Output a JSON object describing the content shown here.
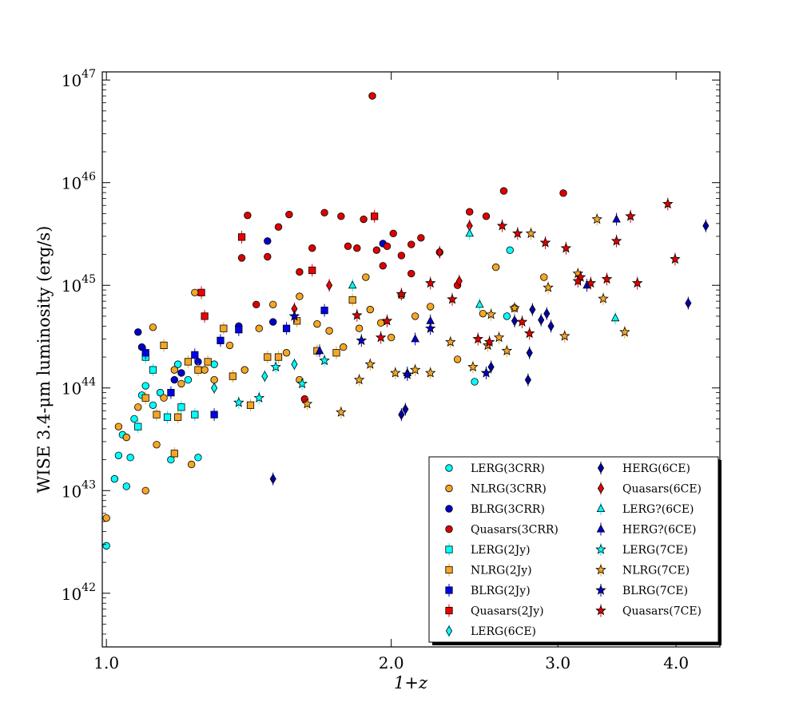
{
  "chart_data": {
    "type": "scatter",
    "title": "",
    "xlabel": "1+z",
    "ylabel": "WISE 3.4-μm luminosity (erg/s)",
    "x_scale": "log",
    "y_scale": "log",
    "xlim": [
      0.99,
      4.45
    ],
    "ylim": [
      3e+41,
      1.2e+47
    ],
    "x_ticks": [
      1.0,
      2.0,
      3.0,
      4.0
    ],
    "x_tick_labels": [
      "1.0",
      "2.0",
      "3.0",
      "4.0"
    ],
    "y_ticks": [
      1e+42,
      1e+43,
      1e+44,
      1e+45,
      1e+46,
      1e+47
    ],
    "y_tick_labels": [
      {
        "base": "10",
        "exp": "42"
      },
      {
        "base": "10",
        "exp": "43"
      },
      {
        "base": "10",
        "exp": "44"
      },
      {
        "base": "10",
        "exp": "45"
      },
      {
        "base": "10",
        "exp": "46"
      },
      {
        "base": "10",
        "exp": "47"
      }
    ],
    "grid": false,
    "legend_position": "lower-right",
    "series": [
      {
        "name": "LERG(3CRR)",
        "marker": "circle",
        "color": "#00ffff",
        "points": [
          [
            1.0,
            2.9e+42
          ],
          [
            1.02,
            1.3e+43
          ],
          [
            1.03,
            2.2e+43
          ],
          [
            1.04,
            3.5e+43
          ],
          [
            1.05,
            1.1e+43
          ],
          [
            1.06,
            2.1e+43
          ],
          [
            1.07,
            5e+43
          ],
          [
            1.09,
            8.5e+43
          ],
          [
            1.1,
            1.05e+44
          ],
          [
            1.12,
            6.8e+43
          ],
          [
            1.14,
            9e+43
          ],
          [
            1.17,
            2e+43
          ],
          [
            1.19,
            1.7e+44
          ],
          [
            1.22,
            1.2e+44
          ],
          [
            1.25,
            2.1e+43
          ],
          [
            1.3,
            1.7e+44
          ],
          [
            2.45,
            1.15e+44
          ],
          [
            2.65,
            5e+44
          ],
          [
            2.67,
            2.2e+45
          ]
        ]
      },
      {
        "name": "NLRG(3CRR)",
        "marker": "circle",
        "color": "#f5a623",
        "points": [
          [
            1.0,
            5.4e+42
          ],
          [
            1.03,
            4.2e+43
          ],
          [
            1.05,
            3.3e+43
          ],
          [
            1.08,
            6.5e+43
          ],
          [
            1.1,
            1e+43
          ],
          [
            1.12,
            3.9e+44
          ],
          [
            1.13,
            2.8e+43
          ],
          [
            1.15,
            8e+43
          ],
          [
            1.18,
            1.5e+44
          ],
          [
            1.2,
            1.1e+44
          ],
          [
            1.23,
            1.8e+43
          ],
          [
            1.24,
            8.5e+44
          ],
          [
            1.27,
            1.5e+44
          ],
          [
            1.3,
            1.2e+44
          ],
          [
            1.35,
            2.6e+44
          ],
          [
            1.4,
            1.5e+44
          ],
          [
            1.45,
            3.8e+44
          ],
          [
            1.5,
            6.5e+44
          ],
          [
            1.55,
            2.2e+44
          ],
          [
            1.6,
            1.2e+44
          ],
          [
            1.67,
            4.2e+44
          ],
          [
            1.72,
            3.6e+44
          ],
          [
            1.78,
            2.5e+44
          ],
          [
            1.85,
            3.8e+44
          ],
          [
            1.9,
            5.8e+44
          ],
          [
            1.95,
            4.3e+44
          ],
          [
            2.0,
            3.1e+44
          ],
          [
            2.05,
            8e+44
          ],
          [
            2.12,
            5e+44
          ],
          [
            2.2,
            6.2e+44
          ],
          [
            2.35,
            1.9e+44
          ],
          [
            2.5,
            5.3e+44
          ],
          [
            2.58,
            1.5e+45
          ],
          [
            2.7,
            6e+44
          ],
          [
            2.9,
            1.2e+45
          ],
          [
            1.88,
            1.2e+45
          ],
          [
            1.6,
            7.8e+44
          ]
        ]
      },
      {
        "name": "BLRG(3CRR)",
        "marker": "circle",
        "color": "#0000cc",
        "points": [
          [
            1.08,
            3.5e+44
          ],
          [
            1.09,
            2.5e+44
          ],
          [
            1.18,
            1.2e+44
          ],
          [
            1.2,
            1.4e+44
          ],
          [
            1.25,
            1.8e+44
          ],
          [
            1.38,
            4e+44
          ],
          [
            1.5,
            4.4e+44
          ],
          [
            1.48,
            2.7e+45
          ],
          [
            1.96,
            2.55e+45
          ]
        ]
      },
      {
        "name": "Quasars(3CRR)",
        "marker": "circle",
        "color": "#dd0000",
        "points": [
          [
            1.39,
            1.85e+45
          ],
          [
            1.41,
            4.8e+45
          ],
          [
            1.44,
            6.5e+44
          ],
          [
            1.48,
            1.9e+45
          ],
          [
            1.52,
            3.7e+45
          ],
          [
            1.56,
            4.9e+45
          ],
          [
            1.6,
            1.35e+45
          ],
          [
            1.62,
            7.8e+43
          ],
          [
            1.65,
            2.3e+45
          ],
          [
            1.7,
            5.1e+45
          ],
          [
            1.77,
            4.7e+45
          ],
          [
            1.8,
            2.4e+45
          ],
          [
            1.84,
            2.3e+45
          ],
          [
            1.87,
            4.4e+45
          ],
          [
            1.91,
            7e+46
          ],
          [
            1.93,
            2.2e+45
          ],
          [
            1.98,
            2.4e+45
          ],
          [
            2.01,
            3.2e+45
          ],
          [
            2.05,
            1.95e+45
          ],
          [
            2.1,
            2.5e+45
          ],
          [
            2.15,
            2.9e+45
          ],
          [
            2.25,
            2.1e+45
          ],
          [
            2.35,
            1e+45
          ],
          [
            2.42,
            5.2e+45
          ],
          [
            2.52,
            4.7e+45
          ],
          [
            2.63,
            8.3e+45
          ],
          [
            3.04,
            7.9e+45
          ],
          [
            1.96,
            1.55e+45
          ],
          [
            2.1,
            1.3e+45
          ]
        ]
      },
      {
        "name": "LERG(2Jy)",
        "marker": "square",
        "color": "#00ffff",
        "points": [
          [
            1.08,
            4.2e+43
          ],
          [
            1.1,
            2e+44
          ],
          [
            1.12,
            1.5e+44
          ],
          [
            1.16,
            5.2e+43
          ],
          [
            1.2,
            6.5e+43
          ],
          [
            1.24,
            5.5e+43
          ]
        ]
      },
      {
        "name": "NLRG(2Jy)",
        "marker": "square",
        "color": "#f5a623",
        "points": [
          [
            1.1,
            8e+43
          ],
          [
            1.13,
            5.5e+43
          ],
          [
            1.15,
            2.6e+44
          ],
          [
            1.18,
            2.3e+43
          ],
          [
            1.19,
            5.2e+43
          ],
          [
            1.22,
            1.8e+44
          ],
          [
            1.25,
            1.5e+44
          ],
          [
            1.28,
            1.8e+44
          ],
          [
            1.33,
            3.8e+44
          ],
          [
            1.36,
            1.3e+44
          ],
          [
            1.42,
            6.8e+43
          ],
          [
            1.48,
            2e+44
          ],
          [
            1.52,
            2e+44
          ],
          [
            1.59,
            4.5e+44
          ],
          [
            1.67,
            2.3e+44
          ],
          [
            1.75,
            2.2e+44
          ],
          [
            1.82,
            7.2e+44
          ]
        ]
      },
      {
        "name": "BLRG(2Jy)",
        "marker": "square",
        "color": "#0000ee",
        "points": [
          [
            1.1,
            2.2e+44
          ],
          [
            1.17,
            9e+43
          ],
          [
            1.24,
            2.1e+44
          ],
          [
            1.3,
            5.5e+43
          ],
          [
            1.32,
            2.9e+44
          ],
          [
            1.38,
            3.7e+44
          ],
          [
            1.55,
            3.8e+44
          ],
          [
            1.7,
            5.7e+44
          ]
        ]
      },
      {
        "name": "Quasars(2Jy)",
        "marker": "square",
        "color": "#ee0000",
        "points": [
          [
            1.26,
            8.5e+44
          ],
          [
            1.27,
            5e+44
          ],
          [
            1.39,
            2.95e+45
          ],
          [
            1.65,
            1.4e+45
          ],
          [
            1.92,
            4.7e+45
          ]
        ]
      },
      {
        "name": "LERG(6CE)",
        "marker": "diamond",
        "color": "#00ffff",
        "points": [
          [
            1.3,
            1e+44
          ],
          [
            1.47,
            1.3e+44
          ],
          [
            1.58,
            1.7e+44
          ]
        ]
      },
      {
        "name": "HERG(6CE)",
        "marker": "diamond",
        "color": "#0000aa",
        "points": [
          [
            1.5,
            1.3e+43
          ],
          [
            2.05,
            5.5e+43
          ],
          [
            2.07,
            6.2e+43
          ],
          [
            2.55,
            1.6e+44
          ],
          [
            2.7,
            4.5e+44
          ],
          [
            2.79,
            1.2e+44
          ],
          [
            2.8,
            2.2e+44
          ],
          [
            2.82,
            5.8e+44
          ],
          [
            2.88,
            4.6e+44
          ],
          [
            2.92,
            5.3e+44
          ],
          [
            2.95,
            4e+44
          ],
          [
            4.12,
            6.7e+44
          ],
          [
            4.3,
            3.8e+45
          ]
        ]
      },
      {
        "name": "Quasars(6CE)",
        "marker": "diamond",
        "color": "#ee0000",
        "points": [
          [
            1.58,
            5.9e+44
          ],
          [
            1.72,
            1e+45
          ],
          [
            2.42,
            3.8e+45
          ],
          [
            2.36,
            1.1e+45
          ],
          [
            2.25,
            2.1e+45
          ]
        ]
      },
      {
        "name": "LERG?(6CE)",
        "marker": "triangle",
        "color": "#00ffff",
        "points": [
          [
            1.82,
            1e+45
          ],
          [
            2.42,
            3.2e+45
          ],
          [
            2.48,
            6.5e+44
          ],
          [
            3.45,
            4.8e+44
          ]
        ]
      },
      {
        "name": "HERG?(6CE)",
        "marker": "triangle",
        "color": "#0000cc",
        "points": [
          [
            1.68,
            2.3e+44
          ],
          [
            2.12,
            3e+44
          ],
          [
            2.2,
            4.5e+44
          ],
          [
            2.08,
            1.4e+44
          ],
          [
            3.22,
            1e+45
          ],
          [
            3.46,
            4.4e+45
          ]
        ]
      },
      {
        "name": "LERG(7CE)",
        "marker": "star",
        "color": "#00ffff",
        "points": [
          [
            1.38,
            7.2e+43
          ],
          [
            1.45,
            8e+43
          ],
          [
            1.51,
            1.6e+44
          ],
          [
            1.61,
            1.1e+44
          ],
          [
            1.7,
            1.85e+44
          ]
        ]
      },
      {
        "name": "NLRG(7CE)",
        "marker": "star",
        "color": "#f5a623",
        "points": [
          [
            1.63,
            7e+43
          ],
          [
            1.77,
            5.8e+43
          ],
          [
            1.85,
            1.2e+44
          ],
          [
            1.9,
            1.7e+44
          ],
          [
            2.02,
            1.4e+44
          ],
          [
            2.12,
            1.5e+44
          ],
          [
            2.2,
            1.4e+44
          ],
          [
            2.31,
            2.8e+44
          ],
          [
            2.44,
            1.6e+44
          ],
          [
            2.53,
            2.6e+44
          ],
          [
            2.6,
            3.1e+44
          ],
          [
            2.65,
            2.3e+44
          ],
          [
            2.7,
            6e+44
          ],
          [
            2.81,
            3.2e+45
          ],
          [
            3.05,
            3.2e+44
          ],
          [
            3.15,
            1.3e+45
          ],
          [
            3.3,
            4.4e+45
          ],
          [
            3.35,
            7.4e+44
          ],
          [
            3.53,
            3.5e+44
          ],
          [
            2.93,
            9.5e+44
          ],
          [
            2.55,
            5.2e+44
          ]
        ]
      },
      {
        "name": "BLRG(7CE)",
        "marker": "star",
        "color": "#0000cc",
        "points": [
          [
            1.58,
            5e+44
          ],
          [
            1.86,
            2.9e+44
          ],
          [
            2.08,
            1.35e+44
          ],
          [
            2.2,
            3.8e+44
          ],
          [
            2.52,
            1.4e+44
          ]
        ]
      },
      {
        "name": "Quasars(7CE)",
        "marker": "star",
        "color": "#dd0000",
        "points": [
          [
            1.95,
            3.1e+44
          ],
          [
            2.05,
            8.2e+44
          ],
          [
            2.2,
            1.05e+45
          ],
          [
            2.32,
            7.3e+44
          ],
          [
            2.54,
            2.8e+44
          ],
          [
            2.62,
            3.8e+45
          ],
          [
            2.72,
            3.2e+45
          ],
          [
            2.8,
            3.4e+44
          ],
          [
            2.91,
            2.6e+45
          ],
          [
            3.06,
            2.3e+45
          ],
          [
            3.17,
            1.2e+45
          ],
          [
            3.25,
            1.05e+45
          ],
          [
            3.38,
            1.15e+45
          ],
          [
            3.46,
            2.7e+45
          ],
          [
            3.64,
            1.05e+45
          ],
          [
            3.92,
            6.2e+45
          ],
          [
            3.99,
            1.8e+45
          ],
          [
            1.84,
            5.1e+44
          ],
          [
            2.75,
            4.4e+44
          ],
          [
            3.58,
            4.7e+45
          ],
          [
            2.47,
            3e+44
          ],
          [
            1.98,
            4.5e+44
          ],
          [
            3.15,
            1.1e+45
          ]
        ]
      }
    ]
  }
}
